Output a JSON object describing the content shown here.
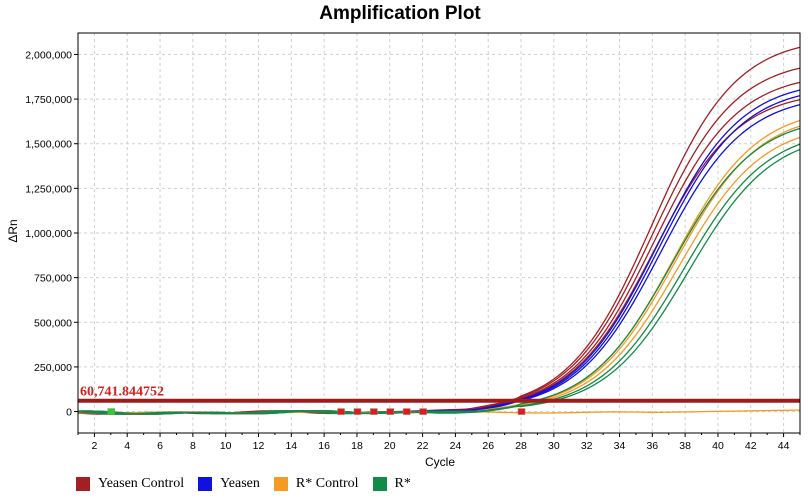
{
  "chart_data": {
    "type": "line",
    "title": "Amplification Plot",
    "xlabel": "Cycle",
    "ylabel": "ΔRn",
    "xlim": [
      1,
      45
    ],
    "ylim": [
      -120000,
      2120000
    ],
    "x_ticks": [
      2,
      4,
      6,
      8,
      10,
      12,
      14,
      16,
      18,
      20,
      22,
      24,
      26,
      28,
      30,
      32,
      34,
      36,
      38,
      40,
      42,
      44
    ],
    "y_ticks": [
      {
        "value": 0,
        "label": "0"
      },
      {
        "value": 250000,
        "label": "250,000"
      },
      {
        "value": 500000,
        "label": "500,000"
      },
      {
        "value": 750000,
        "label": "750,000"
      },
      {
        "value": 1000000,
        "label": "1,000,000"
      },
      {
        "value": 1250000,
        "label": "1,250,000"
      },
      {
        "value": 1500000,
        "label": "1,500,000"
      },
      {
        "value": 1750000,
        "label": "1,750,000"
      },
      {
        "value": 2000000,
        "label": "2,000,000"
      }
    ],
    "grid": true,
    "legend_position": "bottom-left",
    "threshold": {
      "value": 60741.844752,
      "label": "60,741.844752",
      "color": "#9b1c1c",
      "label_color": "#d41f1f"
    },
    "series": [
      {
        "name": "Yeasen Control",
        "color": "#a31f24",
        "curves": [
          {
            "plateau": 2100000,
            "midpoint": 36.0,
            "slope": 2.55
          },
          {
            "plateau": 1980000,
            "midpoint": 36.0,
            "slope": 2.55
          },
          {
            "plateau": 1900000,
            "midpoint": 36.1,
            "slope": 2.55
          },
          {
            "plateau": 1800000,
            "midpoint": 36.1,
            "slope": 2.55
          }
        ]
      },
      {
        "name": "Yeasen",
        "color": "#1010e0",
        "curves": [
          {
            "plateau": 1860000,
            "midpoint": 36.3,
            "slope": 2.55
          },
          {
            "plateau": 1830000,
            "midpoint": 36.4,
            "slope": 2.55
          },
          {
            "plateau": 1780000,
            "midpoint": 36.5,
            "slope": 2.55
          }
        ]
      },
      {
        "name": "R* Control",
        "color": "#f59a23",
        "curves": [
          {
            "plateau": 1710000,
            "midpoint": 37.3,
            "slope": 2.55
          },
          {
            "plateau": 1680000,
            "midpoint": 37.4,
            "slope": 2.55
          },
          {
            "plateau": 1620000,
            "midpoint": 37.6,
            "slope": 2.55
          },
          {
            "plateau": 9000,
            "midpoint": 44,
            "slope": 3,
            "flat": true
          }
        ]
      },
      {
        "name": "R*",
        "color": "#128a48",
        "curves": [
          {
            "plateau": 1660000,
            "midpoint": 37.2,
            "slope": 2.55
          },
          {
            "plateau": 1590000,
            "midpoint": 37.9,
            "slope": 2.55
          },
          {
            "plateau": 1570000,
            "midpoint": 38.2,
            "slope": 2.55
          }
        ]
      }
    ],
    "markers": [
      {
        "cycle": 3,
        "color": "#2bd12b",
        "filled": true
      },
      {
        "cycle": 17,
        "color": "#e01b1b",
        "filled": true
      },
      {
        "cycle": 18,
        "color": "#e01b1b",
        "filled": true
      },
      {
        "cycle": 19,
        "color": "#e01b1b",
        "filled": true
      },
      {
        "cycle": 20,
        "color": "#e01b1b",
        "filled": true
      },
      {
        "cycle": 21,
        "color": "#e01b1b",
        "filled": true
      },
      {
        "cycle": 22,
        "color": "#e01b1b",
        "filled": true
      },
      {
        "cycle": 28,
        "color": "#e01b1b",
        "filled": true
      }
    ]
  }
}
